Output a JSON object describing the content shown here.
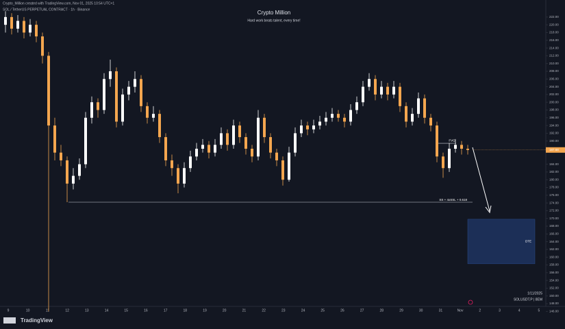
{
  "chart_data": {
    "type": "candlestick",
    "author_line": "Crypto_Million created with TradingView.com, Nov 01, 2025 10:54 UTC+1",
    "symbol": "SOL / TetherUS PERPETUAL CONTRACT · 1h · Binance",
    "title": "Crypto Million",
    "subtitle": "Hard work beats talent, every time!",
    "up_color": "#ffffff",
    "down_color": "#f4a64f",
    "ylim": [
      145,
      226.4
    ],
    "yticks": [
      {
        "value": 222,
        "label": "222.00"
      },
      {
        "value": 220,
        "label": "220.00"
      },
      {
        "value": 218,
        "label": "218.00"
      },
      {
        "value": 216,
        "label": "216.00"
      },
      {
        "value": 214,
        "label": "214.00"
      },
      {
        "value": 212,
        "label": "212.00"
      },
      {
        "value": 210,
        "label": "210.00"
      },
      {
        "value": 208,
        "label": "208.00"
      },
      {
        "value": 206,
        "label": "206.00"
      },
      {
        "value": 204,
        "label": "204.00"
      },
      {
        "value": 202,
        "label": "202.00"
      },
      {
        "value": 200,
        "label": "200.00"
      },
      {
        "value": 198,
        "label": "198.00"
      },
      {
        "value": 196,
        "label": "196.00"
      },
      {
        "value": 194,
        "label": "194.00"
      },
      {
        "value": 192,
        "label": "192.00"
      },
      {
        "value": 190,
        "label": "190.00"
      },
      {
        "value": 188,
        "label": "188.00"
      },
      {
        "value": 184,
        "label": "184.00"
      },
      {
        "value": 182,
        "label": "182.00"
      },
      {
        "value": 180,
        "label": "180.00"
      },
      {
        "value": 178,
        "label": "178.00"
      },
      {
        "value": 176,
        "label": "176.00"
      },
      {
        "value": 174,
        "label": "174.00"
      },
      {
        "value": 172,
        "label": "172.00"
      },
      {
        "value": 170,
        "label": "170.00"
      },
      {
        "value": 168,
        "label": "168.00"
      },
      {
        "value": 166,
        "label": "166.00"
      },
      {
        "value": 164,
        "label": "164.00"
      },
      {
        "value": 162,
        "label": "162.00"
      },
      {
        "value": 160,
        "label": "160.00"
      },
      {
        "value": 158,
        "label": "158.00"
      },
      {
        "value": 156,
        "label": "156.00"
      },
      {
        "value": 154,
        "label": "154.00"
      },
      {
        "value": 152,
        "label": "152.00"
      },
      {
        "value": 150,
        "label": "150.00"
      },
      {
        "value": 148,
        "label": "148.00"
      },
      {
        "value": 146,
        "label": "146.00"
      }
    ],
    "x_labels": [
      "9",
      "10",
      "11",
      "12",
      "13",
      "14",
      "15",
      "16",
      "17",
      "18",
      "19",
      "20",
      "21",
      "22",
      "23",
      "24",
      "25",
      "26",
      "27",
      "28",
      "29",
      "30",
      "31",
      "Nov",
      "2",
      "3",
      "4",
      "5"
    ],
    "last_price": 187.68,
    "ohlc": [
      [
        220,
        223.5,
        218,
        222
      ],
      [
        222,
        223,
        217.5,
        219
      ],
      [
        219,
        222.5,
        218,
        221
      ],
      [
        221,
        222,
        216.5,
        218
      ],
      [
        218,
        221.5,
        217,
        220
      ],
      [
        220,
        221,
        215.5,
        217
      ],
      [
        217,
        218,
        210,
        212
      ],
      [
        212,
        213,
        146,
        194
      ],
      [
        194,
        196,
        185,
        187
      ],
      [
        187,
        189,
        183.5,
        185
      ],
      [
        185,
        186,
        174.2,
        179
      ],
      [
        179,
        183,
        177.5,
        181
      ],
      [
        181,
        185.5,
        180,
        184
      ],
      [
        184,
        197.5,
        183,
        196
      ],
      [
        196,
        201.5,
        194.5,
        200
      ],
      [
        200,
        201,
        196,
        198
      ],
      [
        198,
        207.5,
        197,
        206
      ],
      [
        206,
        211,
        204,
        208
      ],
      [
        208,
        209,
        193.5,
        195
      ],
      [
        195,
        203.5,
        194,
        202
      ],
      [
        202,
        205.5,
        200.5,
        204
      ],
      [
        204,
        208,
        202.5,
        206
      ],
      [
        206,
        207,
        197.5,
        199
      ],
      [
        199,
        200,
        194.5,
        196
      ],
      [
        196,
        199,
        195,
        197
      ],
      [
        197,
        198,
        189.5,
        191
      ],
      [
        191,
        192,
        183.5,
        185
      ],
      [
        185,
        186.5,
        181,
        183
      ],
      [
        183,
        184,
        176.5,
        179
      ],
      [
        179,
        184.5,
        178,
        183
      ],
      [
        183,
        187.5,
        182,
        186
      ],
      [
        186,
        189.5,
        185,
        188
      ],
      [
        188,
        190.5,
        187,
        189
      ],
      [
        189,
        190,
        185.5,
        187
      ],
      [
        187,
        190.5,
        186,
        189
      ],
      [
        189,
        193.5,
        188,
        192
      ],
      [
        192,
        193,
        187.5,
        189
      ],
      [
        189,
        195.5,
        188,
        194
      ],
      [
        194,
        195,
        189.5,
        191
      ],
      [
        191,
        192,
        186.5,
        188
      ],
      [
        188,
        189,
        184.5,
        186
      ],
      [
        186,
        198,
        185,
        196
      ],
      [
        196,
        197,
        189.5,
        191
      ],
      [
        191,
        192,
        185.5,
        187
      ],
      [
        187,
        188,
        183.5,
        185
      ],
      [
        185,
        186,
        178.5,
        180
      ],
      [
        180,
        188.5,
        179.5,
        187
      ],
      [
        187,
        193.5,
        186,
        192
      ],
      [
        192,
        195.5,
        191,
        194
      ],
      [
        194,
        195,
        191.5,
        193
      ],
      [
        193,
        195.5,
        192,
        194
      ],
      [
        194,
        196.5,
        193,
        195
      ],
      [
        195,
        197.5,
        194,
        196
      ],
      [
        196,
        198.5,
        195,
        197
      ],
      [
        197,
        198,
        195,
        196
      ],
      [
        196,
        197,
        193.5,
        195
      ],
      [
        195,
        199.5,
        194,
        198
      ],
      [
        198,
        201.5,
        197,
        200
      ],
      [
        200,
        205.5,
        199,
        204
      ],
      [
        204,
        207.5,
        203,
        206
      ],
      [
        206,
        207,
        200.5,
        202
      ],
      [
        202,
        205.5,
        201,
        204
      ],
      [
        204,
        205,
        200.5,
        202
      ],
      [
        202,
        205.5,
        201,
        204
      ],
      [
        204,
        205,
        197.5,
        199
      ],
      [
        199,
        200,
        193.5,
        195
      ],
      [
        195,
        198.5,
        194,
        197
      ],
      [
        197,
        202.5,
        196,
        201
      ],
      [
        201,
        202,
        194.5,
        196
      ],
      [
        196,
        197,
        192.5,
        194
      ],
      [
        194,
        195,
        184.5,
        186
      ],
      [
        186,
        187,
        180.5,
        183
      ],
      [
        183,
        189.5,
        182,
        188
      ],
      [
        188,
        190.5,
        187,
        189
      ],
      [
        189,
        190,
        186.5,
        188
      ],
      [
        188,
        189,
        186.5,
        187.68
      ]
    ],
    "level": {
      "value": 174.2,
      "label": "SS + 4xSSL + 0.618"
    },
    "fvg": {
      "value": 189.4,
      "label": "FVG"
    },
    "target_zone": {
      "top": 169.8,
      "bottom": 158.3,
      "label": "DTE"
    },
    "footer_date": "1/11/2025",
    "footer_symbol": "SOLUSDT.P | 8EM",
    "brand": "TradingView"
  }
}
